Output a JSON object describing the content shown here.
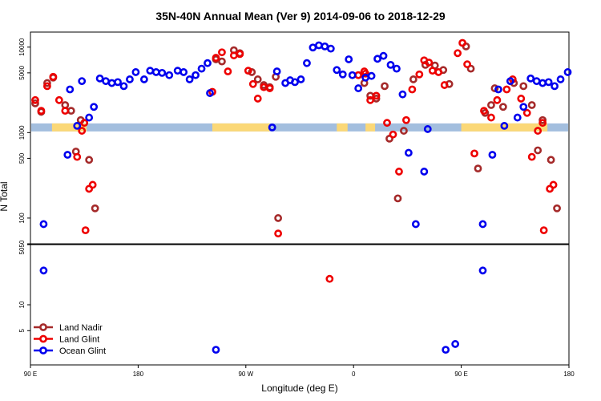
{
  "chart_data": {
    "type": "scatter",
    "title": "35N-40N Annual Mean (Ver 9)   2014-09-06 to 2018-12-29",
    "xlabel": "Longitude (deg E)",
    "ylabel": "N Total",
    "x_ticks": [
      {
        "lon": 90,
        "label": "90 E"
      },
      {
        "lon": 180,
        "label": "180"
      },
      {
        "lon": 270,
        "label": "90 W"
      },
      {
        "lon": 360,
        "label": "0"
      },
      {
        "lon": 450,
        "label": "90 E"
      },
      {
        "lon": 540,
        "label": "180"
      }
    ],
    "xlim": [
      90,
      540
    ],
    "upper_panel": {
      "ylim": [
        50,
        15000
      ],
      "scale": "log",
      "y_ticks": [
        {
          "value": 50,
          "label": "50"
        },
        {
          "value": 100,
          "label": "100"
        },
        {
          "value": 500,
          "label": "500"
        },
        {
          "value": 1000,
          "label": "1000"
        },
        {
          "value": 5000,
          "label": "5000"
        },
        {
          "value": 10000,
          "label": "10000"
        }
      ]
    },
    "lower_panel": {
      "ylim": [
        2,
        50
      ],
      "scale": "log",
      "y_ticks": [
        {
          "value": 5,
          "label": "5"
        },
        {
          "value": 10,
          "label": "10"
        },
        {
          "value": 50,
          "label": "50"
        }
      ]
    },
    "land_band": {
      "y_value": 1150,
      "ocean_color": "#a3bede",
      "land_color": "#fbd877"
    },
    "series": [
      {
        "name": "Land Nadir",
        "color": "#a52a2a",
        "points": [
          [
            94,
            2200
          ],
          [
            99,
            1750
          ],
          [
            104,
            3800
          ],
          [
            109,
            4400
          ],
          [
            119,
            2100
          ],
          [
            124,
            1800
          ],
          [
            128,
            600
          ],
          [
            132,
            1400
          ],
          [
            139,
            480
          ],
          [
            144,
            130
          ],
          [
            245,
            7200
          ],
          [
            250,
            6800
          ],
          [
            260,
            9200
          ],
          [
            265,
            8500
          ],
          [
            275,
            5100
          ],
          [
            280,
            4200
          ],
          [
            285,
            3600
          ],
          [
            290,
            3400
          ],
          [
            295,
            4500
          ],
          [
            297,
            100
          ],
          [
            364,
            4700
          ],
          [
            369,
            3800
          ],
          [
            374,
            2700
          ],
          [
            379,
            2500
          ],
          [
            386,
            3500
          ],
          [
            390,
            850
          ],
          [
            397,
            170
          ],
          [
            402,
            1050
          ],
          [
            410,
            4200
          ],
          [
            420,
            6200
          ],
          [
            428,
            6100
          ],
          [
            435,
            5400
          ],
          [
            440,
            3700
          ],
          [
            454,
            10200
          ],
          [
            458,
            5600
          ],
          [
            464,
            380
          ],
          [
            470,
            1700
          ],
          [
            475,
            2100
          ],
          [
            478,
            3300
          ],
          [
            485,
            2000
          ],
          [
            494,
            3800
          ],
          [
            502,
            3500
          ],
          [
            509,
            2100
          ],
          [
            514,
            620
          ],
          [
            518,
            1400
          ],
          [
            525,
            480
          ],
          [
            530,
            130
          ]
        ]
      },
      {
        "name": "Land Glint",
        "color": "#ee0000",
        "points": [
          [
            94,
            2400
          ],
          [
            99,
            1800
          ],
          [
            104,
            3500
          ],
          [
            109,
            4500
          ],
          [
            114,
            2400
          ],
          [
            119,
            1800
          ],
          [
            129,
            520
          ],
          [
            133,
            1050
          ],
          [
            135,
            1300
          ],
          [
            136,
            72
          ],
          [
            139,
            220
          ],
          [
            142,
            245
          ],
          [
            242,
            3000
          ],
          [
            245,
            7500
          ],
          [
            250,
            8700
          ],
          [
            255,
            5200
          ],
          [
            260,
            8000
          ],
          [
            265,
            8300
          ],
          [
            272,
            5300
          ],
          [
            276,
            3700
          ],
          [
            280,
            2500
          ],
          [
            285,
            3400
          ],
          [
            290,
            3300
          ],
          [
            297,
            66
          ],
          [
            340,
            20
          ],
          [
            364,
            4700
          ],
          [
            369,
            5200
          ],
          [
            370,
            4900
          ],
          [
            374,
            2400
          ],
          [
            379,
            2700
          ],
          [
            388,
            1300
          ],
          [
            393,
            950
          ],
          [
            398,
            350
          ],
          [
            404,
            1400
          ],
          [
            409,
            3200
          ],
          [
            415,
            4800
          ],
          [
            419,
            7000
          ],
          [
            423,
            6600
          ],
          [
            426,
            5300
          ],
          [
            431,
            5100
          ],
          [
            436,
            3600
          ],
          [
            447,
            8500
          ],
          [
            451,
            11200
          ],
          [
            455,
            6300
          ],
          [
            461,
            570
          ],
          [
            469,
            1800
          ],
          [
            475,
            1500
          ],
          [
            480,
            2400
          ],
          [
            488,
            3200
          ],
          [
            493,
            4200
          ],
          [
            500,
            2500
          ],
          [
            505,
            1700
          ],
          [
            509,
            520
          ],
          [
            514,
            1050
          ],
          [
            518,
            1300
          ],
          [
            519,
            72
          ],
          [
            524,
            220
          ],
          [
            527,
            245
          ]
        ]
      },
      {
        "name": "Ocean Glint",
        "color": "#0000ee",
        "points": [
          [
            101,
            85
          ],
          [
            101,
            25
          ],
          [
            121,
            550
          ],
          [
            123,
            3200
          ],
          [
            129,
            1200
          ],
          [
            133,
            4000
          ],
          [
            139,
            1500
          ],
          [
            143,
            2000
          ],
          [
            148,
            4300
          ],
          [
            153,
            4000
          ],
          [
            158,
            3800
          ],
          [
            163,
            3900
          ],
          [
            168,
            3500
          ],
          [
            173,
            4200
          ],
          [
            178,
            5100
          ],
          [
            185,
            4200
          ],
          [
            190,
            5300
          ],
          [
            195,
            5100
          ],
          [
            200,
            5000
          ],
          [
            206,
            4700
          ],
          [
            213,
            5300
          ],
          [
            218,
            5100
          ],
          [
            223,
            4200
          ],
          [
            228,
            4700
          ],
          [
            233,
            5600
          ],
          [
            238,
            6500
          ],
          [
            240,
            2900
          ],
          [
            245,
            3
          ],
          [
            292,
            1150
          ],
          [
            296,
            5200
          ],
          [
            303,
            3800
          ],
          [
            307,
            4100
          ],
          [
            311,
            3900
          ],
          [
            316,
            4200
          ],
          [
            321,
            6500
          ],
          [
            326,
            9900
          ],
          [
            331,
            10500
          ],
          [
            336,
            10200
          ],
          [
            341,
            9600
          ],
          [
            346,
            5400
          ],
          [
            351,
            4800
          ],
          [
            356,
            7200
          ],
          [
            359,
            4700
          ],
          [
            364,
            3300
          ],
          [
            370,
            4400
          ],
          [
            375,
            4600
          ],
          [
            380,
            7300
          ],
          [
            385,
            7900
          ],
          [
            391,
            6200
          ],
          [
            396,
            5600
          ],
          [
            401,
            2800
          ],
          [
            406,
            580
          ],
          [
            412,
            85
          ],
          [
            419,
            350
          ],
          [
            422,
            1100
          ],
          [
            437,
            3
          ],
          [
            445,
            3.5
          ],
          [
            468,
            85
          ],
          [
            468,
            25
          ],
          [
            476,
            550
          ],
          [
            481,
            3200
          ],
          [
            486,
            1200
          ],
          [
            491,
            4000
          ],
          [
            497,
            1500
          ],
          [
            502,
            2000
          ],
          [
            508,
            4300
          ],
          [
            513,
            4000
          ],
          [
            518,
            3800
          ],
          [
            523,
            3900
          ],
          [
            528,
            3500
          ],
          [
            533,
            4200
          ],
          [
            539,
            5100
          ]
        ]
      }
    ],
    "legend": {
      "position": "bottom-left",
      "entries": [
        "Land Nadir",
        "Land Glint",
        "Ocean Glint"
      ]
    }
  }
}
